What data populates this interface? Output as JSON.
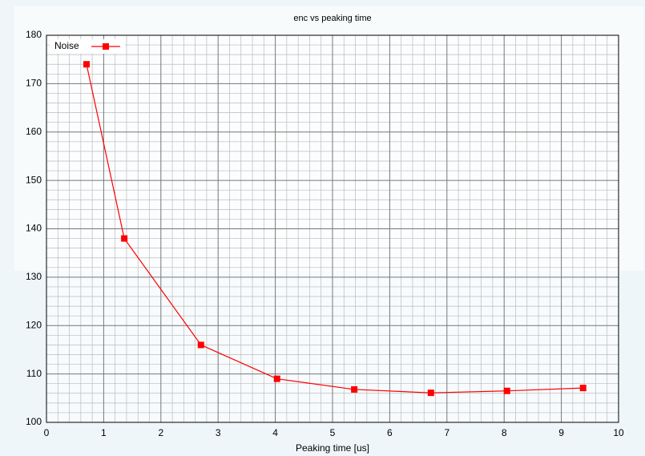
{
  "chart_data": {
    "type": "line",
    "title": "enc vs peaking time",
    "x_label": "Peaking time [us]",
    "x": [
      0.7,
      1.36,
      2.7,
      4.03,
      5.38,
      6.72,
      8.05,
      9.38
    ],
    "series": [
      {
        "name": "Noise",
        "color": "#ff0000",
        "values": [
          174,
          138,
          116,
          109,
          106.8,
          106.1,
          106.5,
          107.1
        ]
      }
    ],
    "xlim": [
      0,
      10
    ],
    "xticks": [
      0,
      1,
      2,
      3,
      4,
      5,
      6,
      7,
      8,
      9,
      10
    ],
    "ylim": [
      100,
      180
    ],
    "yticks": [
      100,
      110,
      120,
      130,
      140,
      150,
      160,
      170,
      180
    ],
    "grid": true,
    "legend": "upper left"
  }
}
